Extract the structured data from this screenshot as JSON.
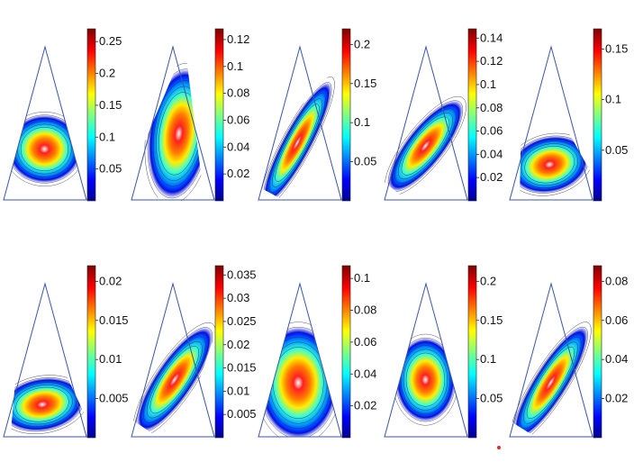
{
  "panels": [
    {
      "id": "r1c1",
      "ticks": [
        "0.05",
        "0.1",
        "0.15",
        "0.2",
        "0.25"
      ],
      "blob": "central-mid"
    },
    {
      "id": "r1c2",
      "ticks": [
        "0.02",
        "0.04",
        "0.06",
        "0.08",
        "0.1",
        "0.12"
      ],
      "blob": "tall-center"
    },
    {
      "id": "r1c3",
      "ticks": [
        "0.05",
        "0.1",
        "0.15",
        "0.2"
      ],
      "blob": "left-edge-crescent"
    },
    {
      "id": "r1c4",
      "ticks": [
        "0.02",
        "0.04",
        "0.06",
        "0.08",
        "0.1",
        "0.12",
        "0.14"
      ],
      "blob": "diagonal-left"
    },
    {
      "id": "r1c5",
      "ticks": [
        "0.05",
        "0.1",
        "0.15"
      ],
      "blob": "lower-arc"
    },
    {
      "id": "r2c1",
      "ticks": [
        "0.005",
        "0.01",
        "0.015",
        "0.02"
      ],
      "blob": "lower-arc-low"
    },
    {
      "id": "r2c2",
      "ticks": [
        "0.005",
        "0.01",
        "0.015",
        "0.02",
        "0.025",
        "0.03",
        "0.035"
      ],
      "blob": "diagonal-right"
    },
    {
      "id": "r2c3",
      "ticks": [
        "0.02",
        "0.04",
        "0.06",
        "0.08",
        "0.1"
      ],
      "blob": "wide-center"
    },
    {
      "id": "r2c4",
      "ticks": [
        "0.05",
        "0.1",
        "0.15",
        "0.2"
      ],
      "blob": "central-mid-small"
    },
    {
      "id": "r2c5",
      "ticks": [
        "0.02",
        "0.04",
        "0.06",
        "0.08"
      ],
      "blob": "diagonal-right-thin"
    }
  ],
  "colormap": [
    "#00008f",
    "#0000ff",
    "#0080ff",
    "#00ffff",
    "#80ff80",
    "#ffff00",
    "#ff8000",
    "#ff0000",
    "#800000"
  ]
}
